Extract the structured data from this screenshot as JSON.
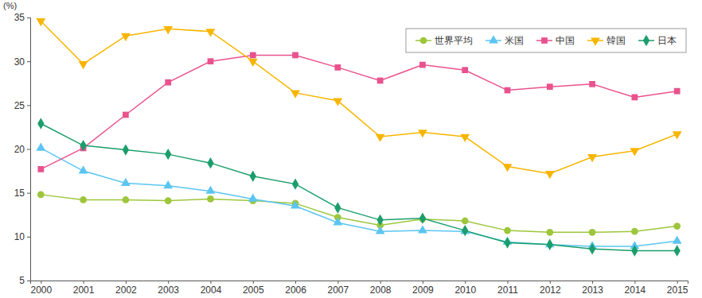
{
  "chart_data": {
    "type": "line",
    "y_label": "(%)",
    "categories": [
      "2000",
      "2001",
      "2002",
      "2003",
      "2004",
      "2005",
      "2006",
      "2007",
      "2008",
      "2009",
      "2010",
      "2011",
      "2012",
      "2013",
      "2014",
      "2015"
    ],
    "series": [
      {
        "name": "世界平均",
        "color": "#9dc63b",
        "marker": "circle",
        "values": [
          14.8,
          14.2,
          14.2,
          14.1,
          14.3,
          14.1,
          13.8,
          12.2,
          11.3,
          12.0,
          11.8,
          10.7,
          10.5,
          10.5,
          10.6,
          11.2
        ]
      },
      {
        "name": "米国",
        "color": "#5bc5f2",
        "marker": "triangle",
        "values": [
          20.1,
          17.5,
          16.1,
          15.8,
          15.2,
          14.3,
          13.5,
          11.6,
          10.6,
          10.7,
          10.6,
          9.4,
          9.1,
          8.9,
          8.9,
          9.5
        ]
      },
      {
        "name": "中国",
        "color": "#e9528e",
        "marker": "square",
        "values": [
          17.7,
          20.1,
          23.9,
          27.6,
          30.0,
          30.7,
          30.7,
          29.3,
          27.8,
          29.6,
          29.0,
          26.7,
          27.1,
          27.4,
          25.9,
          26.6
        ]
      },
      {
        "name": "韓国",
        "color": "#f8b500",
        "marker": "triangle-down",
        "values": [
          34.6,
          29.7,
          32.9,
          33.7,
          33.4,
          30.0,
          26.4,
          25.5,
          21.4,
          21.9,
          21.4,
          18.0,
          17.2,
          19.1,
          19.8,
          21.7
        ]
      },
      {
        "name": "日本",
        "color": "#1b9e6b",
        "marker": "diamond",
        "values": [
          22.9,
          20.4,
          19.9,
          19.4,
          18.4,
          16.9,
          16.0,
          13.3,
          11.9,
          12.1,
          10.7,
          9.3,
          9.1,
          8.6,
          8.4,
          8.4
        ]
      }
    ],
    "ylim": [
      5,
      35
    ],
    "yticks": [
      5,
      10,
      15,
      20,
      25,
      30,
      35
    ],
    "grid": false,
    "legend": "top-right"
  }
}
